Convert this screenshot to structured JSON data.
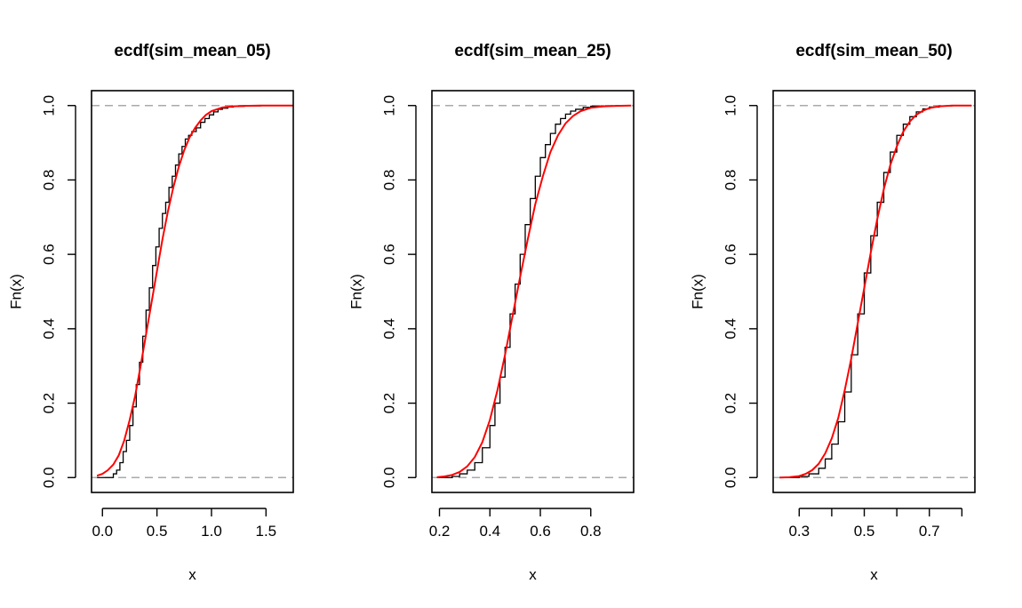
{
  "chart_data": [
    {
      "type": "line",
      "title": "ecdf(sim_mean_05)",
      "xlabel": "x",
      "ylabel": "Fn(x)",
      "xlim": [
        -0.1,
        1.75
      ],
      "ylim": [
        -0.04,
        1.04
      ],
      "xticks": [
        0.0,
        0.5,
        1.0,
        1.5
      ],
      "xtick_labels": [
        "0.0",
        "0.5",
        "1.0",
        "1.5"
      ],
      "yticks": [
        0.0,
        0.2,
        0.4,
        0.6,
        0.8,
        1.0
      ],
      "ytick_labels": [
        "0.0",
        "0.2",
        "0.4",
        "0.6",
        "0.8",
        "1.0"
      ],
      "reference_lines_y": [
        0,
        1
      ],
      "grid": false,
      "series": [
        {
          "kind": "step",
          "color": "#000000",
          "x": [
            -0.05,
            0.1,
            0.13,
            0.16,
            0.19,
            0.22,
            0.25,
            0.28,
            0.31,
            0.34,
            0.37,
            0.4,
            0.43,
            0.46,
            0.49,
            0.52,
            0.55,
            0.58,
            0.61,
            0.64,
            0.67,
            0.7,
            0.73,
            0.76,
            0.79,
            0.82,
            0.86,
            0.9,
            0.94,
            0.98,
            1.02,
            1.06,
            1.1,
            1.15,
            1.2,
            1.3,
            1.45,
            1.75
          ],
          "y": [
            0.0,
            0.01,
            0.02,
            0.04,
            0.07,
            0.1,
            0.14,
            0.19,
            0.25,
            0.31,
            0.38,
            0.45,
            0.51,
            0.57,
            0.62,
            0.67,
            0.71,
            0.74,
            0.78,
            0.81,
            0.84,
            0.87,
            0.89,
            0.91,
            0.92,
            0.93,
            0.94,
            0.955,
            0.965,
            0.975,
            0.983,
            0.99,
            0.993,
            0.996,
            0.998,
            0.999,
            1.0,
            1.0
          ]
        },
        {
          "kind": "line",
          "color": "#ff0000",
          "x": [
            -0.05,
            0.0,
            0.05,
            0.1,
            0.15,
            0.2,
            0.25,
            0.3,
            0.35,
            0.4,
            0.45,
            0.5,
            0.55,
            0.6,
            0.65,
            0.7,
            0.75,
            0.8,
            0.85,
            0.9,
            0.95,
            1.0,
            1.05,
            1.1,
            1.2,
            1.3,
            1.45,
            1.75
          ],
          "y": [
            0.005,
            0.01,
            0.02,
            0.035,
            0.06,
            0.1,
            0.155,
            0.22,
            0.3,
            0.385,
            0.47,
            0.555,
            0.64,
            0.715,
            0.78,
            0.835,
            0.88,
            0.915,
            0.94,
            0.96,
            0.975,
            0.985,
            0.99,
            0.995,
            0.998,
            0.999,
            1.0,
            1.0
          ]
        }
      ]
    },
    {
      "type": "line",
      "title": "ecdf(sim_mean_25)",
      "xlabel": "x",
      "ylabel": "Fn(x)",
      "xlim": [
        0.17,
        0.97
      ],
      "ylim": [
        -0.04,
        1.04
      ],
      "xticks": [
        0.2,
        0.4,
        0.6,
        0.8
      ],
      "xtick_labels": [
        "0.2",
        "0.4",
        "0.6",
        "0.8"
      ],
      "yticks": [
        0.0,
        0.2,
        0.4,
        0.6,
        0.8,
        1.0
      ],
      "ytick_labels": [
        "0.0",
        "0.2",
        "0.4",
        "0.6",
        "0.8",
        "1.0"
      ],
      "reference_lines_y": [
        0,
        1
      ],
      "grid": false,
      "series": [
        {
          "kind": "step",
          "color": "#000000",
          "x": [
            0.19,
            0.25,
            0.28,
            0.31,
            0.34,
            0.37,
            0.4,
            0.42,
            0.44,
            0.46,
            0.48,
            0.5,
            0.52,
            0.54,
            0.56,
            0.58,
            0.6,
            0.62,
            0.64,
            0.66,
            0.68,
            0.7,
            0.72,
            0.74,
            0.77,
            0.8,
            0.84,
            0.9,
            0.96
          ],
          "y": [
            0.0,
            0.003,
            0.01,
            0.02,
            0.04,
            0.08,
            0.14,
            0.2,
            0.27,
            0.35,
            0.44,
            0.52,
            0.6,
            0.68,
            0.75,
            0.81,
            0.86,
            0.895,
            0.925,
            0.95,
            0.965,
            0.977,
            0.985,
            0.99,
            0.995,
            0.998,
            0.999,
            1.0,
            1.0
          ]
        },
        {
          "kind": "line",
          "color": "#ff0000",
          "x": [
            0.19,
            0.22,
            0.25,
            0.28,
            0.31,
            0.34,
            0.37,
            0.4,
            0.43,
            0.46,
            0.49,
            0.52,
            0.55,
            0.58,
            0.61,
            0.64,
            0.67,
            0.7,
            0.73,
            0.76,
            0.8,
            0.85,
            0.9,
            0.96
          ],
          "y": [
            0.001,
            0.003,
            0.007,
            0.015,
            0.03,
            0.055,
            0.095,
            0.155,
            0.235,
            0.33,
            0.435,
            0.54,
            0.64,
            0.735,
            0.81,
            0.875,
            0.92,
            0.952,
            0.972,
            0.985,
            0.994,
            0.998,
            0.999,
            1.0
          ]
        }
      ]
    },
    {
      "type": "line",
      "title": "ecdf(sim_mean_50)",
      "xlabel": "x",
      "ylabel": "Fn(x)",
      "xlim": [
        0.22,
        0.84
      ],
      "ylim": [
        -0.04,
        1.04
      ],
      "xticks": [
        0.3,
        0.4,
        0.5,
        0.6,
        0.7,
        0.8
      ],
      "xtick_labels": [
        "0.3",
        "",
        "0.5",
        "",
        "0.7",
        ""
      ],
      "yticks": [
        0.0,
        0.2,
        0.4,
        0.6,
        0.8,
        1.0
      ],
      "ytick_labels": [
        "0.0",
        "0.2",
        "0.4",
        "0.6",
        "0.8",
        "1.0"
      ],
      "reference_lines_y": [
        0,
        1
      ],
      "grid": false,
      "series": [
        {
          "kind": "step",
          "color": "#000000",
          "x": [
            0.24,
            0.3,
            0.33,
            0.36,
            0.38,
            0.4,
            0.42,
            0.44,
            0.46,
            0.48,
            0.5,
            0.52,
            0.54,
            0.56,
            0.58,
            0.6,
            0.62,
            0.64,
            0.66,
            0.68,
            0.7,
            0.73,
            0.77,
            0.83
          ],
          "y": [
            0.0,
            0.003,
            0.01,
            0.025,
            0.05,
            0.09,
            0.15,
            0.23,
            0.33,
            0.44,
            0.55,
            0.65,
            0.74,
            0.82,
            0.875,
            0.92,
            0.95,
            0.97,
            0.983,
            0.991,
            0.996,
            0.999,
            1.0,
            1.0
          ]
        },
        {
          "kind": "line",
          "color": "#ff0000",
          "x": [
            0.24,
            0.27,
            0.3,
            0.32,
            0.34,
            0.36,
            0.38,
            0.4,
            0.42,
            0.44,
            0.46,
            0.48,
            0.5,
            0.52,
            0.54,
            0.56,
            0.58,
            0.6,
            0.62,
            0.64,
            0.66,
            0.68,
            0.7,
            0.73,
            0.77,
            0.83
          ],
          "y": [
            0.0,
            0.001,
            0.004,
            0.01,
            0.02,
            0.037,
            0.065,
            0.105,
            0.16,
            0.235,
            0.32,
            0.415,
            0.51,
            0.605,
            0.695,
            0.775,
            0.84,
            0.89,
            0.93,
            0.957,
            0.975,
            0.986,
            0.993,
            0.998,
            1.0,
            1.0
          ]
        }
      ]
    }
  ]
}
